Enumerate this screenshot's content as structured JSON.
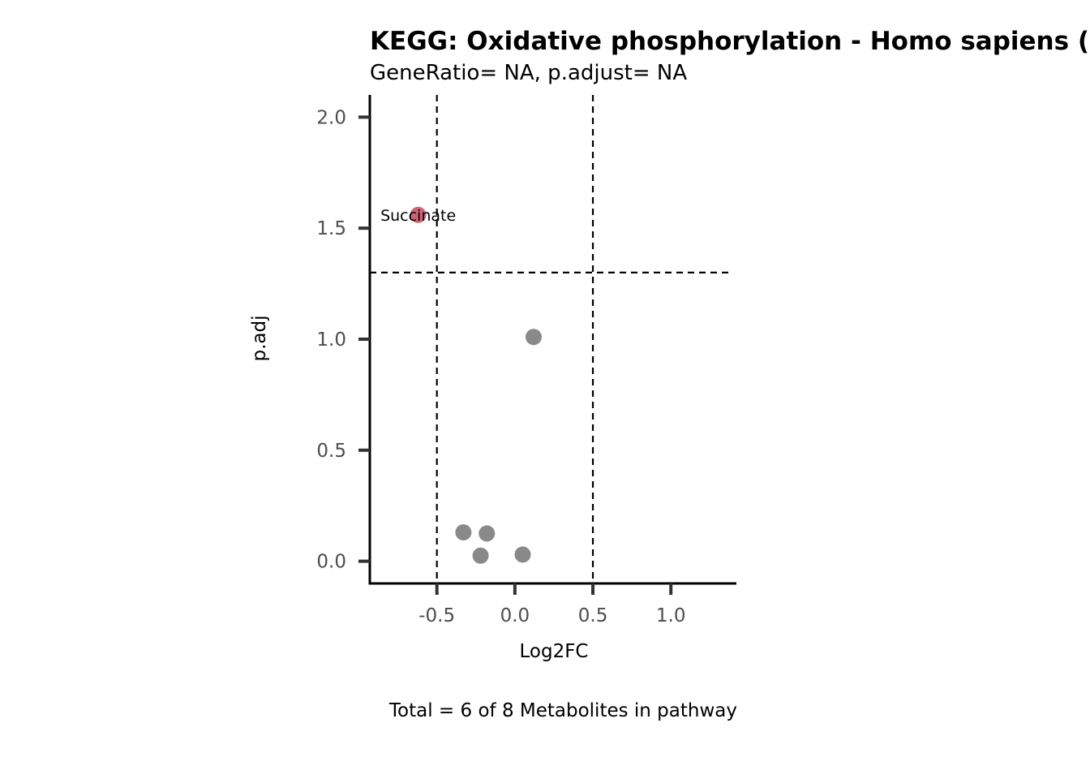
{
  "chart_data": {
    "type": "scatter",
    "title": "KEGG: Oxidative phosphorylation - Homo sapiens (human)",
    "subtitle": "GeneRatio= NA, p.adjust= NA",
    "xlabel": "Log2FC",
    "ylabel": "p.adj",
    "caption": "Total = 6 of 8 Metabolites in pathway",
    "xlim": [
      -0.93,
      1.42
    ],
    "ylim": [
      -0.1,
      2.1
    ],
    "x_ticks": [
      -0.5,
      0.0,
      0.5,
      1.0
    ],
    "x_tick_labels": [
      "-0.5",
      "0.0",
      "0.5",
      "1.0"
    ],
    "y_ticks": [
      0.0,
      0.5,
      1.0,
      1.5,
      2.0
    ],
    "y_tick_labels": [
      "0.0",
      "0.5",
      "1.0",
      "1.5",
      "2.0"
    ],
    "vlines": [
      -0.5,
      0.5
    ],
    "hlines": [
      1.3
    ],
    "grid": false,
    "legend": "none",
    "colors": {
      "significant": "#cd6476",
      "not_significant": "#898989",
      "axis": "#000000",
      "tick": "#333333",
      "threshold_line": "#000000"
    },
    "points": [
      {
        "x": -0.62,
        "y": 1.56,
        "group": "significant",
        "label": "Succinate"
      },
      {
        "x": 0.12,
        "y": 1.01,
        "group": "not_significant",
        "label": ""
      },
      {
        "x": -0.33,
        "y": 0.13,
        "group": "not_significant",
        "label": ""
      },
      {
        "x": -0.18,
        "y": 0.125,
        "group": "not_significant",
        "label": ""
      },
      {
        "x": -0.22,
        "y": 0.025,
        "group": "not_significant",
        "label": ""
      },
      {
        "x": 0.05,
        "y": 0.03,
        "group": "not_significant",
        "label": ""
      }
    ]
  }
}
